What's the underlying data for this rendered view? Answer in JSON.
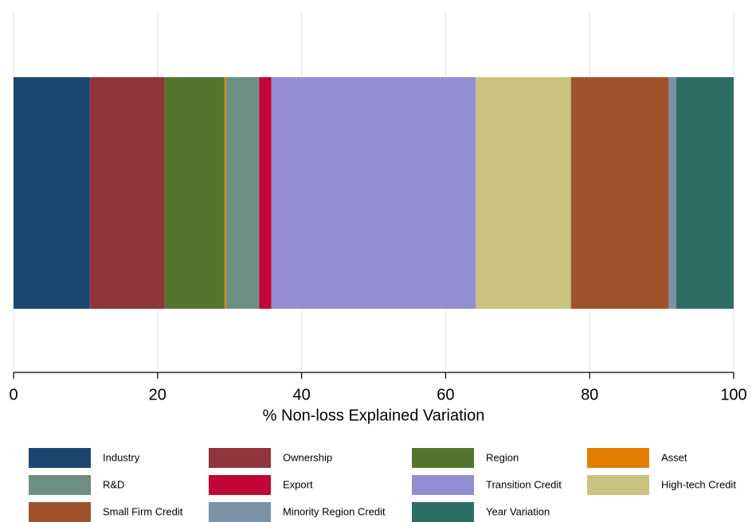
{
  "chart_data": {
    "type": "bar",
    "orientation": "horizontal",
    "stacked": true,
    "x_label": "% Non-loss Explained Variation",
    "categories": [
      null
    ],
    "series": [
      {
        "name": "Industry",
        "color": "#1a476f",
        "values": [
          10.6
        ]
      },
      {
        "name": "Ownership",
        "color": "#90353b",
        "values": [
          10.4
        ]
      },
      {
        "name": "Region",
        "color": "#55752f",
        "values": [
          8.3
        ]
      },
      {
        "name": "Asset",
        "color": "#e37e00",
        "values": [
          0.2
        ]
      },
      {
        "name": "R&D",
        "color": "#6e8e84",
        "values": [
          4.6
        ]
      },
      {
        "name": "Export",
        "color": "#c10534",
        "values": [
          1.7
        ]
      },
      {
        "name": "Transition Credit",
        "color": "#938dd2",
        "values": [
          28.4
        ]
      },
      {
        "name": "High-tech Credit",
        "color": "#cac27e",
        "values": [
          13.2
        ]
      },
      {
        "name": "Small Firm Credit",
        "color": "#a0522d",
        "values": [
          13.6
        ]
      },
      {
        "name": "Minority Region Credit",
        "color": "#7b92a8",
        "values": [
          1.0
        ]
      },
      {
        "name": "Year Variation",
        "color": "#2d6d66",
        "values": [
          8.0
        ]
      }
    ],
    "xlim": [
      0,
      100
    ],
    "xticks": [
      0,
      20,
      40,
      60,
      80,
      100
    ],
    "grid": true,
    "legend": "bottom"
  }
}
